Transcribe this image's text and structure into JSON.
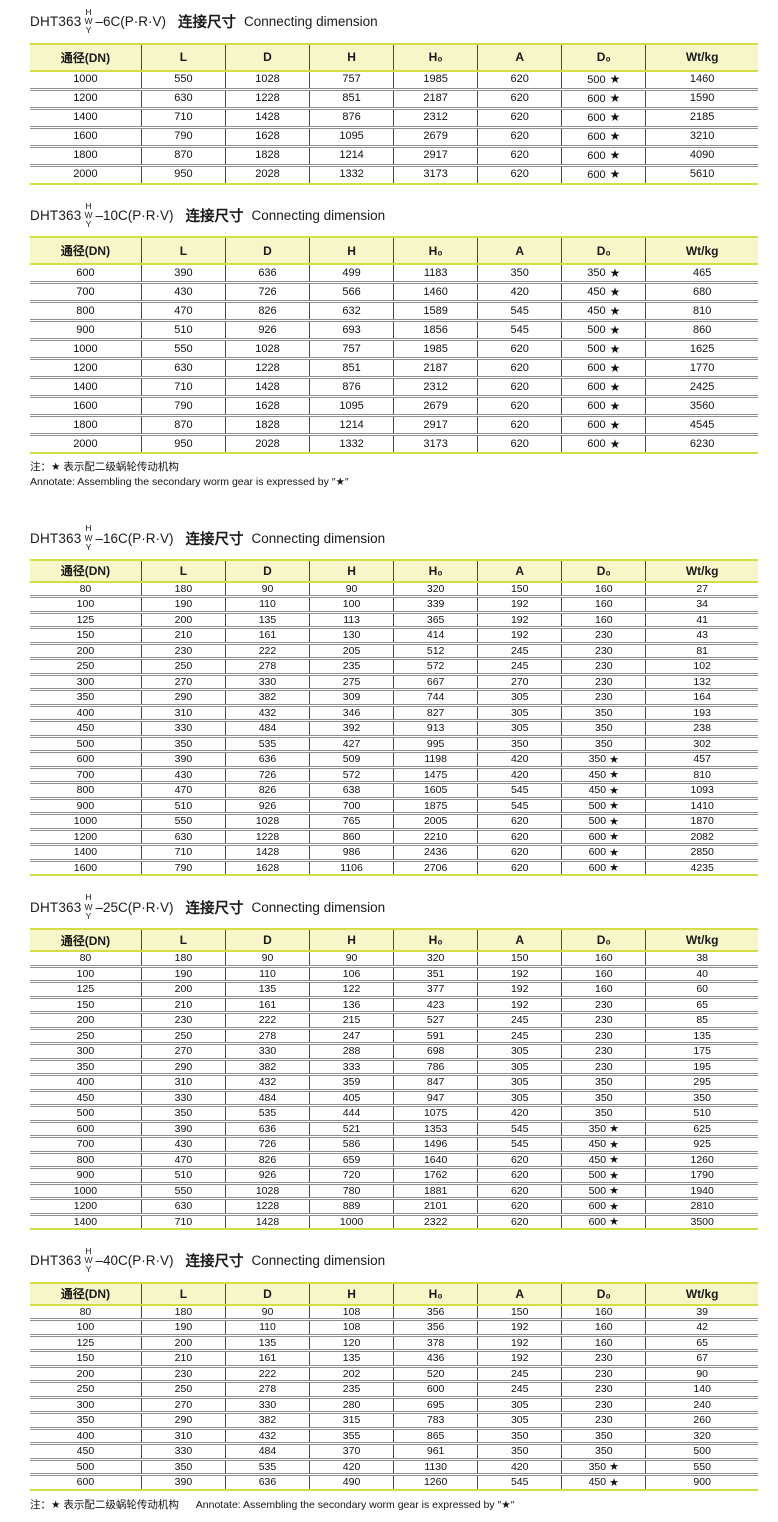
{
  "columns": [
    "通径(DN)",
    "L",
    "D",
    "H",
    "H₀",
    "A",
    "D₀",
    "Wt/kg"
  ],
  "variant": {
    "top": "H",
    "mid": "W",
    "bottom": "Y"
  },
  "colors": {
    "header_bg": "#f6f6c9",
    "accent_line": "#d2de44",
    "row_divider": "#8f8f8f",
    "cell_divider": "#4a4a4a"
  },
  "notes": {
    "mid_line1": "注：★ 表示配二级蜗轮传动机构",
    "mid_line2": "Annotate: Assembling the secondary worm gear is expressed by ″★″",
    "bottom_cn": "注：★ 表示配二级蜗轮传动机构",
    "bottom_en": "Annotate: Assembling the secondary worm gear is expressed by ″★″"
  },
  "tables": [
    {
      "model": "DHT363",
      "pressure": "–6C(P·R·V)",
      "cn": "连接尺寸",
      "en": "Connecting dimension",
      "rows": [
        [
          "1000",
          "550",
          "1028",
          "757",
          "1985",
          "620",
          "500 ★",
          "1460"
        ],
        [
          "1200",
          "630",
          "1228",
          "851",
          "2187",
          "620",
          "600 ★",
          "1590"
        ],
        [
          "1400",
          "710",
          "1428",
          "876",
          "2312",
          "620",
          "600 ★",
          "2185"
        ],
        [
          "1600",
          "790",
          "1628",
          "1095",
          "2679",
          "620",
          "600 ★",
          "3210"
        ],
        [
          "1800",
          "870",
          "1828",
          "1214",
          "2917",
          "620",
          "600 ★",
          "4090"
        ],
        [
          "2000",
          "950",
          "2028",
          "1332",
          "3173",
          "620",
          "600 ★",
          "5610"
        ]
      ]
    },
    {
      "model": "DHT363",
      "pressure": "–10C(P·R·V)",
      "cn": "连接尺寸",
      "en": "Connecting dimension",
      "rows": [
        [
          "600",
          "390",
          "636",
          "499",
          "1183",
          "350",
          "350 ★",
          "465"
        ],
        [
          "700",
          "430",
          "726",
          "566",
          "1460",
          "420",
          "450 ★",
          "680"
        ],
        [
          "800",
          "470",
          "826",
          "632",
          "1589",
          "545",
          "450 ★",
          "810"
        ],
        [
          "900",
          "510",
          "926",
          "693",
          "1856",
          "545",
          "500 ★",
          "860"
        ],
        [
          "1000",
          "550",
          "1028",
          "757",
          "1985",
          "620",
          "500 ★",
          "1625"
        ],
        [
          "1200",
          "630",
          "1228",
          "851",
          "2187",
          "620",
          "600 ★",
          "1770"
        ],
        [
          "1400",
          "710",
          "1428",
          "876",
          "2312",
          "620",
          "600 ★",
          "2425"
        ],
        [
          "1600",
          "790",
          "1628",
          "1095",
          "2679",
          "620",
          "600 ★",
          "3560"
        ],
        [
          "1800",
          "870",
          "1828",
          "1214",
          "2917",
          "620",
          "600 ★",
          "4545"
        ],
        [
          "2000",
          "950",
          "2028",
          "1332",
          "3173",
          "620",
          "600 ★",
          "6230"
        ]
      ]
    },
    {
      "model": "DHT363",
      "pressure": "–16C(P·R·V)",
      "cn": "连接尺寸",
      "en": "Connecting dimension",
      "rows": [
        [
          "80",
          "180",
          "90",
          "90",
          "320",
          "150",
          "160",
          "27"
        ],
        [
          "100",
          "190",
          "110",
          "100",
          "339",
          "192",
          "160",
          "34"
        ],
        [
          "125",
          "200",
          "135",
          "113",
          "365",
          "192",
          "160",
          "41"
        ],
        [
          "150",
          "210",
          "161",
          "130",
          "414",
          "192",
          "230",
          "43"
        ],
        [
          "200",
          "230",
          "222",
          "205",
          "512",
          "245",
          "230",
          "81"
        ],
        [
          "250",
          "250",
          "278",
          "235",
          "572",
          "245",
          "230",
          "102"
        ],
        [
          "300",
          "270",
          "330",
          "275",
          "667",
          "270",
          "230",
          "132"
        ],
        [
          "350",
          "290",
          "382",
          "309",
          "744",
          "305",
          "230",
          "164"
        ],
        [
          "400",
          "310",
          "432",
          "346",
          "827",
          "305",
          "350",
          "193"
        ],
        [
          "450",
          "330",
          "484",
          "392",
          "913",
          "305",
          "350",
          "238"
        ],
        [
          "500",
          "350",
          "535",
          "427",
          "995",
          "350",
          "350",
          "302"
        ],
        [
          "600",
          "390",
          "636",
          "509",
          "1198",
          "420",
          "350 ★",
          "457"
        ],
        [
          "700",
          "430",
          "726",
          "572",
          "1475",
          "420",
          "450 ★",
          "810"
        ],
        [
          "800",
          "470",
          "826",
          "638",
          "1605",
          "545",
          "450 ★",
          "1093"
        ],
        [
          "900",
          "510",
          "926",
          "700",
          "1875",
          "545",
          "500 ★",
          "1410"
        ],
        [
          "1000",
          "550",
          "1028",
          "765",
          "2005",
          "620",
          "500 ★",
          "1870"
        ],
        [
          "1200",
          "630",
          "1228",
          "860",
          "2210",
          "620",
          "600 ★",
          "2082"
        ],
        [
          "1400",
          "710",
          "1428",
          "986",
          "2436",
          "620",
          "600 ★",
          "2850"
        ],
        [
          "1600",
          "790",
          "1628",
          "1106",
          "2706",
          "620",
          "600 ★",
          "4235"
        ]
      ]
    },
    {
      "model": "DHT363",
      "pressure": "–25C(P·R·V)",
      "cn": "连接尺寸",
      "en": "Connecting dimension",
      "rows": [
        [
          "80",
          "180",
          "90",
          "90",
          "320",
          "150",
          "160",
          "38"
        ],
        [
          "100",
          "190",
          "110",
          "106",
          "351",
          "192",
          "160",
          "40"
        ],
        [
          "125",
          "200",
          "135",
          "122",
          "377",
          "192",
          "160",
          "60"
        ],
        [
          "150",
          "210",
          "161",
          "136",
          "423",
          "192",
          "230",
          "65"
        ],
        [
          "200",
          "230",
          "222",
          "215",
          "527",
          "245",
          "230",
          "85"
        ],
        [
          "250",
          "250",
          "278",
          "247",
          "591",
          "245",
          "230",
          "135"
        ],
        [
          "300",
          "270",
          "330",
          "288",
          "698",
          "305",
          "230",
          "175"
        ],
        [
          "350",
          "290",
          "382",
          "333",
          "786",
          "305",
          "230",
          "195"
        ],
        [
          "400",
          "310",
          "432",
          "359",
          "847",
          "305",
          "350",
          "295"
        ],
        [
          "450",
          "330",
          "484",
          "405",
          "947",
          "305",
          "350",
          "350"
        ],
        [
          "500",
          "350",
          "535",
          "444",
          "1075",
          "420",
          "350",
          "510"
        ],
        [
          "600",
          "390",
          "636",
          "521",
          "1353",
          "545",
          "350 ★",
          "625"
        ],
        [
          "700",
          "430",
          "726",
          "586",
          "1496",
          "545",
          "450 ★",
          "925"
        ],
        [
          "800",
          "470",
          "826",
          "659",
          "1640",
          "620",
          "450 ★",
          "1260"
        ],
        [
          "900",
          "510",
          "926",
          "720",
          "1762",
          "620",
          "500 ★",
          "1790"
        ],
        [
          "1000",
          "550",
          "1028",
          "780",
          "1881",
          "620",
          "500 ★",
          "1940"
        ],
        [
          "1200",
          "630",
          "1228",
          "889",
          "2101",
          "620",
          "600 ★",
          "2810"
        ],
        [
          "1400",
          "710",
          "1428",
          "1000",
          "2322",
          "620",
          "600 ★",
          "3500"
        ]
      ]
    },
    {
      "model": "DHT363",
      "pressure": "–40C(P·R·V)",
      "cn": "连接尺寸",
      "en": "Connecting dimension",
      "rows": [
        [
          "80",
          "180",
          "90",
          "108",
          "356",
          "150",
          "160",
          "39"
        ],
        [
          "100",
          "190",
          "110",
          "108",
          "356",
          "192",
          "160",
          "42"
        ],
        [
          "125",
          "200",
          "135",
          "120",
          "378",
          "192",
          "160",
          "65"
        ],
        [
          "150",
          "210",
          "161",
          "135",
          "436",
          "192",
          "230",
          "67"
        ],
        [
          "200",
          "230",
          "222",
          "202",
          "520",
          "245",
          "230",
          "90"
        ],
        [
          "250",
          "250",
          "278",
          "235",
          "600",
          "245",
          "230",
          "140"
        ],
        [
          "300",
          "270",
          "330",
          "280",
          "695",
          "305",
          "230",
          "240"
        ],
        [
          "350",
          "290",
          "382",
          "315",
          "783",
          "305",
          "230",
          "260"
        ],
        [
          "400",
          "310",
          "432",
          "355",
          "865",
          "350",
          "350",
          "320"
        ],
        [
          "450",
          "330",
          "484",
          "370",
          "961",
          "350",
          "350",
          "500"
        ],
        [
          "500",
          "350",
          "535",
          "420",
          "1130",
          "420",
          "350 ★",
          "550"
        ],
        [
          "600",
          "390",
          "636",
          "490",
          "1260",
          "545",
          "450 ★",
          "900"
        ]
      ]
    }
  ]
}
